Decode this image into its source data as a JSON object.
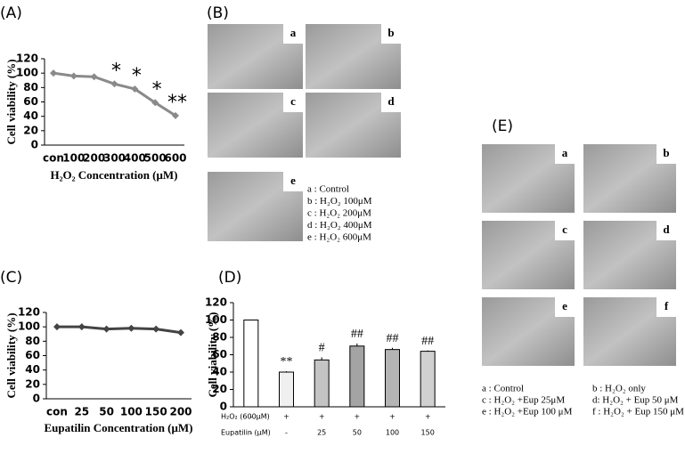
{
  "chart_data": [
    {
      "type": "line",
      "title": "(A)",
      "ylabel": "Cell viability (%)",
      "xlabel": "H₂O₂ Concentration (μM)",
      "categories": [
        "con",
        "100",
        "200",
        "300",
        "400",
        "500",
        "600"
      ],
      "values": [
        100,
        96,
        95,
        85,
        78,
        59,
        41
      ],
      "errors": [
        1,
        1,
        1,
        3,
        2,
        4,
        2
      ],
      "annotations": [
        null,
        null,
        null,
        "*",
        "*",
        "*",
        "**"
      ],
      "color": "#8a8a8a",
      "ylim": [
        0,
        120
      ],
      "yticks": [
        0,
        20,
        40,
        60,
        80,
        100,
        120
      ]
    },
    {
      "type": "line",
      "title": "(C)",
      "ylabel": "Cell viability (%)",
      "xlabel": "Eupatilin Concentration (μM)",
      "categories": [
        "con",
        "25",
        "50",
        "100",
        "150",
        "200"
      ],
      "values": [
        100,
        100,
        97,
        98,
        97,
        92
      ],
      "errors": [
        1,
        1,
        1,
        1,
        1,
        2
      ],
      "color": "#444444",
      "ylim": [
        0,
        120
      ],
      "yticks": [
        0,
        20,
        40,
        60,
        80,
        100,
        120
      ]
    },
    {
      "type": "bar",
      "title": "(D)",
      "ylabel": "Cell viability (%)",
      "category_rows": [
        {
          "name": "H₂O₂ (600μM)",
          "labels": [
            "-",
            "+",
            "+",
            "+",
            "+",
            "+"
          ]
        },
        {
          "name": "Eupatilin (μM)",
          "labels": [
            "-",
            "-",
            "25",
            "50",
            "100",
            "150"
          ]
        }
      ],
      "values": [
        100,
        40,
        54,
        70,
        66,
        64
      ],
      "errors": [
        0,
        1,
        3,
        3,
        2,
        1
      ],
      "annotations": [
        null,
        "**",
        "#",
        "##",
        "##",
        "##"
      ],
      "colors": [
        "#ffffff",
        "#f0f0f0",
        "#c4c4c4",
        "#a4a4a4",
        "#b4b4b4",
        "#d0d0d0"
      ],
      "ylim": [
        0,
        120
      ],
      "yticks": [
        0,
        20,
        40,
        60,
        80,
        100,
        120
      ]
    }
  ],
  "image_panels": [
    {
      "label": "(B)",
      "tiles": [
        "a",
        "b",
        "c",
        "d",
        "e"
      ],
      "legend": [
        "a : Control",
        "b : H₂O₂ 100μM",
        "c : H₂O₂ 200μM",
        "d : H₂O₂ 400μM",
        "e : H₂O₂ 600μM"
      ]
    },
    {
      "label": "(E)",
      "tiles": [
        "a",
        "b",
        "c",
        "d",
        "e",
        "f"
      ],
      "legend": [
        "a : Control",
        "b : H₂O₂ only",
        "c : H₂O₂ +Eup 25μM",
        "d: H₂O₂ + Eup 50 μM",
        "e : H₂O₂ +Eup 100 μM",
        "f : H₂O₂ + Eup 150 μM"
      ]
    }
  ]
}
